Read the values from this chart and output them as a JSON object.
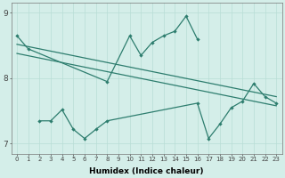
{
  "xlabel": "Humidex (Indice chaleur)",
  "bg_color": "#d4eee9",
  "line_color": "#2d7d6e",
  "grid_color": "#b8ddd6",
  "xlim": [
    -0.5,
    23.5
  ],
  "ylim": [
    6.85,
    9.15
  ],
  "yticks": [
    7,
    8,
    9
  ],
  "xticks": [
    0,
    1,
    2,
    3,
    4,
    5,
    6,
    7,
    8,
    9,
    10,
    11,
    12,
    13,
    14,
    15,
    16,
    17,
    18,
    19,
    20,
    21,
    22,
    23
  ],
  "line1_x": [
    0,
    1,
    8,
    10,
    11,
    12,
    13,
    14,
    15,
    16
  ],
  "line1_y": [
    8.65,
    8.45,
    7.95,
    8.65,
    8.35,
    8.55,
    8.65,
    8.72,
    8.95,
    8.6
  ],
  "trend1_x": [
    0,
    23
  ],
  "trend1_y": [
    8.52,
    7.72
  ],
  "trend2_x": [
    0,
    23
  ],
  "trend2_y": [
    8.38,
    7.58
  ],
  "line4_x": [
    2,
    3,
    4,
    5,
    6,
    7,
    8,
    16,
    17,
    18,
    19,
    20,
    21,
    22,
    23
  ],
  "line4_y": [
    7.35,
    7.35,
    7.52,
    7.22,
    7.08,
    7.22,
    7.35,
    7.62,
    7.08,
    7.3,
    7.55,
    7.65,
    7.92,
    7.72,
    7.62
  ]
}
